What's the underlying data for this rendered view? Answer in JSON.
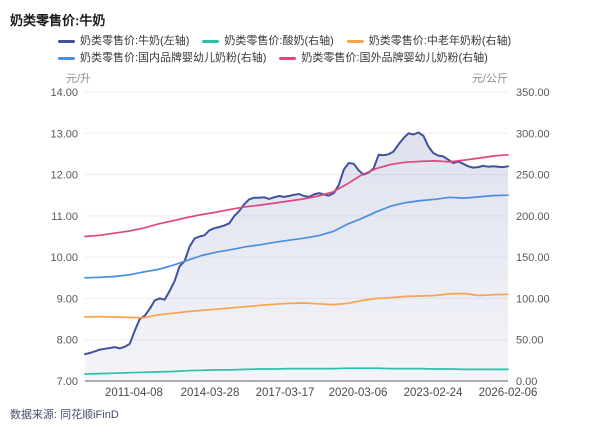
{
  "header": {
    "title": "奶类零售价:牛奶"
  },
  "footer": {
    "source_label": "数据来源: 同花顺iFinD"
  },
  "chart_data": {
    "type": "line",
    "title": "奶类零售价:牛奶",
    "grid": true,
    "legend_position": "top",
    "left_axis": {
      "unit": "元/升",
      "min": 7,
      "max": 14,
      "tick_step": 1
    },
    "right_axis": {
      "unit": "元/公斤",
      "min": 0,
      "max": 350,
      "tick_step": 50
    },
    "x_axis": {
      "tick_labels": [
        "2011-04-08",
        "2014-03-28",
        "2017-03-17",
        "2020-03-06",
        "2023-02-24",
        "2026-02-06"
      ],
      "tick_positions": [
        0.1158,
        0.2955,
        0.4728,
        0.6454,
        0.8227,
        1.0
      ]
    },
    "legend_rows": [
      [
        0,
        1,
        2
      ],
      [
        3,
        4
      ]
    ],
    "series": [
      {
        "name": "奶类零售价:牛奶(左轴)",
        "axis": "left",
        "color": "#41519b",
        "area": true,
        "area_opacity_top": 0.17,
        "area_opacity_bottom": 0.06,
        "values": [
          7.65,
          7.68,
          7.72,
          7.76,
          7.78,
          7.8,
          7.82,
          7.79,
          7.83,
          7.9,
          8.22,
          8.5,
          8.58,
          8.75,
          8.95,
          9.0,
          8.97,
          9.18,
          9.42,
          9.78,
          9.9,
          10.25,
          10.45,
          10.5,
          10.53,
          10.65,
          10.7,
          10.73,
          10.77,
          10.82,
          11.0,
          11.12,
          11.28,
          11.4,
          11.44,
          11.44,
          11.45,
          11.41,
          11.45,
          11.48,
          11.46,
          11.48,
          11.51,
          11.53,
          11.48,
          11.46,
          11.52,
          11.55,
          11.52,
          11.49,
          11.55,
          11.75,
          12.12,
          12.28,
          12.26,
          12.1,
          12.0,
          12.05,
          12.15,
          12.48,
          12.47,
          12.49,
          12.56,
          12.73,
          12.88,
          13.0,
          12.97,
          13.02,
          12.94,
          12.68,
          12.52,
          12.46,
          12.44,
          12.36,
          12.28,
          12.32,
          12.26,
          12.2,
          12.17,
          12.18,
          12.21,
          12.19,
          12.2,
          12.19,
          12.18,
          12.2
        ]
      },
      {
        "name": "奶类零售价:酸奶(右轴)",
        "axis": "right",
        "color": "#2cc0a6",
        "values": [
          8.5,
          9,
          9.5,
          10,
          10.5,
          11,
          11.5,
          12.5,
          13,
          13.5,
          13.5,
          14,
          14.5,
          14.5,
          15,
          15,
          15,
          15,
          15.5,
          15.5,
          15.5,
          15,
          15,
          15,
          14.5,
          14.5,
          14,
          14,
          14,
          14
        ]
      },
      {
        "name": "奶类零售价:中老年奶粉(右轴)",
        "axis": "right",
        "color": "#f6a44d",
        "values": [
          77.5,
          78,
          77.5,
          77,
          76.5,
          80,
          82,
          84,
          85.5,
          87,
          88.5,
          90,
          91.5,
          93,
          94,
          94.5,
          93.5,
          92.5,
          94,
          97.5,
          100,
          101,
          102.5,
          103,
          103.5,
          105.5,
          106,
          103.5,
          104.5,
          105
        ]
      },
      {
        "name": "奶类零售价:国内品牌婴幼儿奶粉(右轴)",
        "axis": "right",
        "color": "#4b8edd",
        "values": [
          125,
          125.5,
          126.5,
          128.5,
          132,
          135,
          140,
          146,
          152,
          156,
          159,
          162.5,
          165,
          168,
          170.5,
          173,
          176,
          181,
          190,
          197,
          205,
          212,
          216,
          218.5,
          220,
          222.5,
          221.5,
          223,
          224.5,
          225
        ]
      },
      {
        "name": "奶类零售价:国外品牌婴幼儿奶粉(右轴)",
        "axis": "right",
        "color": "#e2457f",
        "values": [
          175,
          176.5,
          179,
          181.5,
          185,
          190,
          194,
          198,
          201.5,
          204.5,
          208,
          211,
          213,
          215.5,
          218,
          220.5,
          224,
          229,
          239,
          250,
          257.5,
          262.5,
          265,
          266,
          266.5,
          265.5,
          267.5,
          270,
          272.5,
          274
        ]
      }
    ],
    "colors": {
      "grid_line": "#edeef4",
      "axis_line": "#a8acb5",
      "y_tick_text": "#55595f",
      "x_tick_text": "#474b52"
    }
  }
}
